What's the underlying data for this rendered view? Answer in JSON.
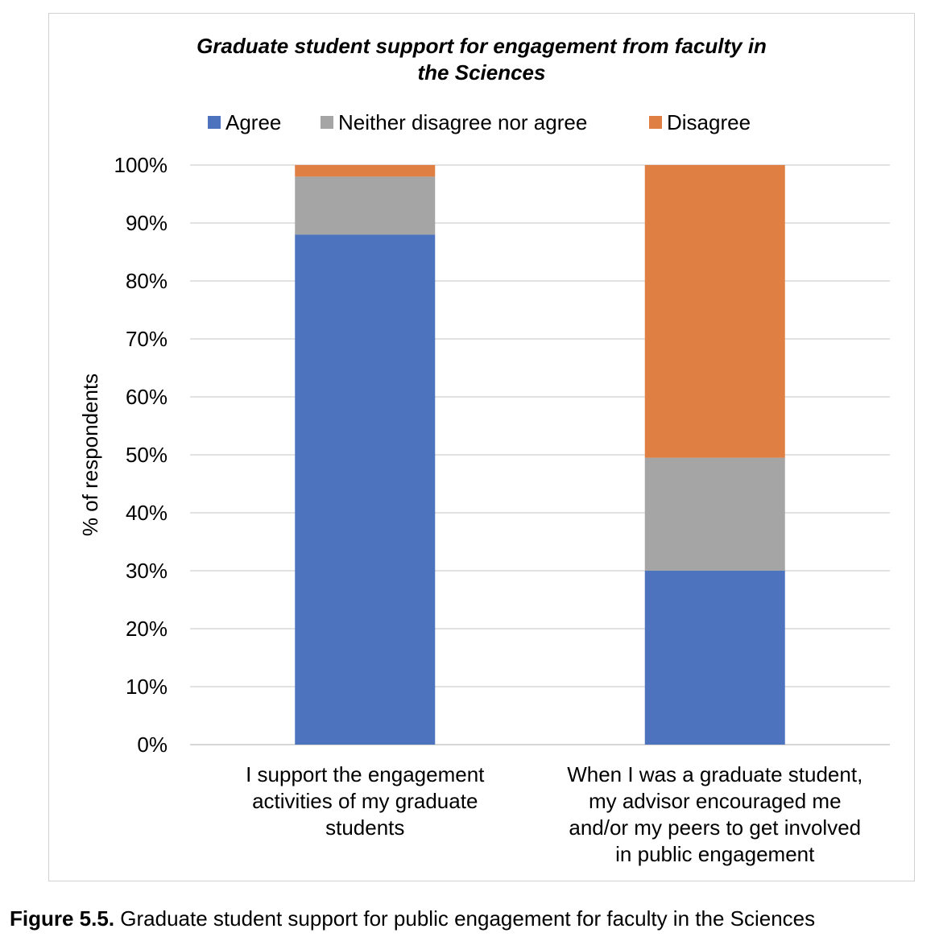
{
  "chart_data": {
    "type": "bar",
    "stacked": true,
    "title": "Graduate student support for engagement from faculty in the Sciences",
    "title_lines": [
      "Graduate student support for engagement from faculty in",
      "the Sciences"
    ],
    "ylabel": "% of respondents",
    "xlabel": "",
    "ylim": [
      0,
      100
    ],
    "yticks": [
      "0%",
      "10%",
      "20%",
      "30%",
      "40%",
      "50%",
      "60%",
      "70%",
      "80%",
      "90%",
      "100%"
    ],
    "grid": true,
    "legend_position": "top",
    "categories": [
      "I support the engagement activities of my graduate students",
      "When I was a graduate student, my advisor encouraged me and/or my peers to get involved in public engagement"
    ],
    "category_lines": [
      [
        "I support the engagement",
        "activities of my graduate",
        "students"
      ],
      [
        "When I was a graduate student,",
        "my advisor encouraged me",
        "and/or my peers to get involved",
        "in public engagement"
      ]
    ],
    "series": [
      {
        "name": "Agree",
        "color": "#4e73be",
        "values": [
          88,
          30
        ]
      },
      {
        "name": "Neither disagree nor agree",
        "color": "#a5a5a5",
        "values": [
          10,
          19.5
        ]
      },
      {
        "name": "Disagree",
        "color": "#e07f44",
        "values": [
          2,
          50.5
        ]
      }
    ]
  },
  "caption": {
    "label": "Figure 5.5.",
    "text": " Graduate student support for public engagement for faculty in the Sciences"
  }
}
